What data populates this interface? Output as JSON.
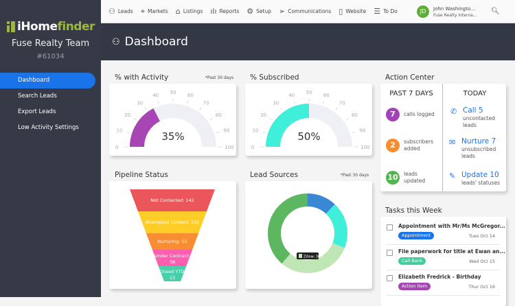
{
  "sidebar": {
    "logo_a": "iHome",
    "logo_b": "finder",
    "team": "Fuse Realty Team",
    "account": "#61034",
    "items": [
      {
        "label": "Dashboard",
        "active": true
      },
      {
        "label": "Search Leads"
      },
      {
        "label": "Export Leads"
      },
      {
        "label": "Low Activity Settings"
      }
    ]
  },
  "topnav": {
    "items": [
      {
        "label": "Leads",
        "icon": "person-icon",
        "glyph": "⚇"
      },
      {
        "label": "Markets",
        "icon": "map-pin-icon",
        "glyph": "⌖"
      },
      {
        "label": "Listings",
        "icon": "home-icon",
        "glyph": "⌂"
      },
      {
        "label": "Reports",
        "icon": "bar-chart-icon",
        "glyph": "ılı"
      },
      {
        "label": "Setup",
        "icon": "gear-icon",
        "glyph": "⚙"
      },
      {
        "label": "Communications",
        "icon": "send-icon",
        "glyph": "➢"
      },
      {
        "label": "Website",
        "icon": "browser-icon",
        "glyph": "▯"
      },
      {
        "label": "To Do",
        "icon": "list-icon",
        "glyph": "☰"
      }
    ],
    "user_initials": "JD",
    "user_name": "John Washingto...",
    "user_org": "Fuse Realty Interna..."
  },
  "header": {
    "title": "Dashboard"
  },
  "gauges": [
    {
      "title": "% with Activity",
      "note": "*Past 30 days",
      "value": 35,
      "label": "35%",
      "color": "#a845b5"
    },
    {
      "title": "% Subscribed",
      "value": 50,
      "label": "50%",
      "color": "#40efd9"
    }
  ],
  "gauge_ticks": [
    "0",
    "10",
    "20",
    "30",
    "40",
    "50",
    "60",
    "70",
    "80",
    "90",
    "100"
  ],
  "pipeline": {
    "title": "Pipeline Status",
    "stages": [
      {
        "label": "Not Contacted: 142",
        "value": 142,
        "color": "#ea5659"
      },
      {
        "label": "Attempted Contact: 102",
        "value": 102,
        "color": "#fecd27"
      },
      {
        "label": "Nurturing: 55",
        "value": 55,
        "color": "#f98d33"
      },
      {
        "label": "Under Contract:",
        "label2": "38",
        "value": 38,
        "color": "#fd5fb0"
      },
      {
        "label": "Closed YTD:",
        "label2": "13",
        "value": 13,
        "color": "#47cfaa"
      }
    ]
  },
  "lead_sources": {
    "title": "Lead Sources",
    "note": "*Past 30 days",
    "tooltip": "Zillow: 30.2",
    "segments": [
      {
        "value": 12,
        "color": "#3a87d6"
      },
      {
        "value": 19,
        "color": "#40efd9"
      },
      {
        "value": 30.2,
        "color": "#c1e6b5"
      },
      {
        "value": 38.8,
        "color": "#5db760"
      }
    ]
  },
  "action_center": {
    "title": "Action Center",
    "past_title": "PAST 7 DAYS",
    "today_title": "TODAY",
    "past": [
      {
        "count": "7",
        "line1": "calls logged",
        "line2": "",
        "color": "#a541b8"
      },
      {
        "count": "2",
        "line1": "subscribers",
        "line2": "added",
        "color": "#f88d2d"
      },
      {
        "count": "10",
        "line1": "leads",
        "line2": "updated",
        "color": "#50b54f"
      }
    ],
    "today": [
      {
        "action": "Call 5",
        "line1": "uncontacted",
        "line2": "leads",
        "icon": "phone-icon",
        "glyph": "✆"
      },
      {
        "action": "Nurture 7",
        "line1": "unsubscribed",
        "line2": "leads",
        "icon": "mail-icon",
        "glyph": "✉"
      },
      {
        "action": "Update 10",
        "line1": "leads' statuses",
        "line2": "",
        "icon": "edit-icon",
        "glyph": "✎"
      }
    ]
  },
  "tasks": {
    "title": "Tasks this Week",
    "items": [
      {
        "title": "Appointment with Mr/Ms McGregor...",
        "badge": "Appointment",
        "badge_color": "#1a73e8",
        "date": "Tues Oct 14"
      },
      {
        "title": "File paperwork for title at Ewan an...",
        "badge": "Call Back",
        "badge_color": "#43cc9f",
        "date": "Wed Oct 15"
      },
      {
        "title": "Elizabeth Fredrick - Birthday",
        "badge": "Action Item",
        "badge_color": "#a845b5",
        "date": "Thur Oct 16"
      }
    ]
  }
}
